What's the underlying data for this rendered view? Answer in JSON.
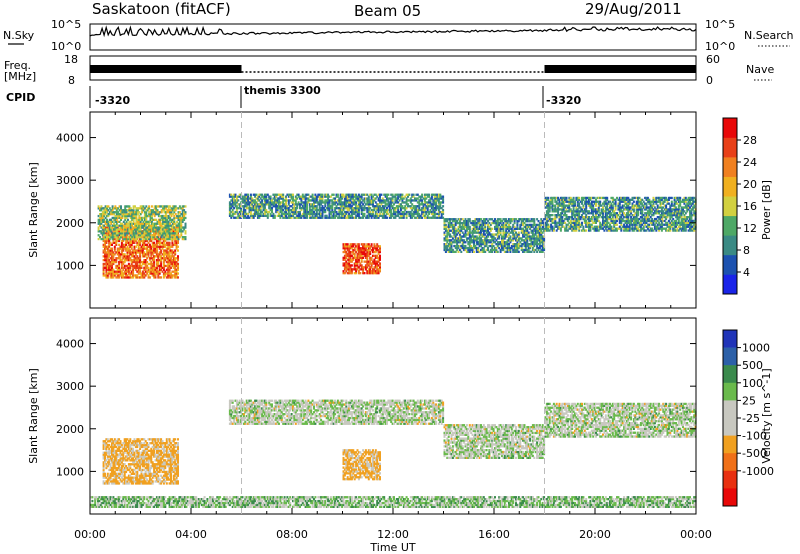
{
  "header": {
    "station": "Saskatoon (fitACF)",
    "beam": "Beam 05",
    "date": "29/Aug/2011"
  },
  "noise_panel": {
    "left_label": "N.Sky",
    "right_label": "N.Search",
    "left_ticks": [
      "10^5",
      "10^0"
    ],
    "right_ticks": [
      "10^5",
      "10^0"
    ]
  },
  "freq_panel": {
    "left_label_line1": "Freq.",
    "left_label_line2": "[MHz]",
    "right_label": "Nave",
    "left_ticks": [
      "18",
      "8"
    ],
    "right_ticks": [
      "60",
      "0"
    ]
  },
  "cpid": {
    "label": "CPID",
    "segments": [
      {
        "name": "-3320",
        "start_hour": 0
      },
      {
        "name": "themis 3300",
        "start_hour": 6
      },
      {
        "name": "-3320",
        "start_hour": 18
      }
    ]
  },
  "colors": {
    "power_scale": [
      "#1a24e8",
      "#1c52b0",
      "#3a8a84",
      "#4ea866",
      "#d2d040",
      "#f0b020",
      "#f08020",
      "#e84018",
      "#e80808"
    ],
    "velocity_scale": [
      "#2034b8",
      "#2c60a8",
      "#3a8a4c",
      "#6aba4c",
      "#c8c8c0",
      "#c8c8c0",
      "#f0a020",
      "#f07018",
      "#e83010",
      "#e80808"
    ]
  },
  "chart_data": [
    {
      "type": "heatmap",
      "title": "",
      "quantity": "Power",
      "ylabel": "Slant Range [km]",
      "xlabel": "",
      "xlim": [
        0,
        24
      ],
      "ylim": [
        0,
        4600
      ],
      "yticks": [
        1000,
        2000,
        3000,
        4000
      ],
      "ytick_labels": [
        "1000",
        "2000",
        "3000",
        "4000"
      ],
      "colorbar": {
        "label": "Power [dB]",
        "range": [
          0,
          32
        ],
        "ticks": [
          4,
          8,
          12,
          16,
          20,
          24,
          28
        ],
        "tick_labels": [
          "4",
          "8",
          "12",
          "16",
          "20",
          "24",
          "28"
        ]
      },
      "echo_regions": [
        {
          "t_start": 0.5,
          "t_end": 3.5,
          "r_low": 700,
          "r_high": 1900,
          "level_db": 24
        },
        {
          "t_start": 0.3,
          "t_end": 3.8,
          "r_low": 1600,
          "r_high": 2400,
          "level_db": 14
        },
        {
          "t_start": 5.5,
          "t_end": 14.0,
          "r_low": 2100,
          "r_high": 2700,
          "level_db": 10
        },
        {
          "t_start": 10.0,
          "t_end": 11.5,
          "r_low": 800,
          "r_high": 1500,
          "level_db": 26
        },
        {
          "t_start": 14.0,
          "t_end": 18.0,
          "r_low": 1300,
          "r_high": 2100,
          "level_db": 10
        },
        {
          "t_start": 18.0,
          "t_end": 24.0,
          "r_low": 1800,
          "r_high": 2600,
          "level_db": 10
        }
      ]
    },
    {
      "type": "heatmap",
      "title": "",
      "quantity": "Velocity",
      "ylabel": "Slant Range [km]",
      "xlabel": "Time UT",
      "xlim": [
        0,
        24
      ],
      "ylim": [
        0,
        4600
      ],
      "yticks": [
        1000,
        2000,
        3000,
        4000
      ],
      "ytick_labels": [
        "1000",
        "2000",
        "3000",
        "4000"
      ],
      "xticks": [
        0,
        4,
        8,
        12,
        16,
        20,
        24
      ],
      "xtick_labels": [
        "00:00",
        "04:00",
        "08:00",
        "12:00",
        "16:00",
        "20:00",
        "00:00"
      ],
      "colorbar": {
        "label": "Velocity [m s^-1]",
        "range": [
          -1200,
          1200
        ],
        "tick_labels": [
          "1000",
          "500",
          "100",
          "25",
          "-25",
          "-100",
          "-500",
          "-1000"
        ]
      },
      "echo_regions": [
        {
          "t_start": 0.5,
          "t_end": 3.5,
          "r_low": 700,
          "r_high": 1800,
          "velocity": -150
        },
        {
          "t_start": 5.5,
          "t_end": 14.0,
          "r_low": 2100,
          "r_high": 2700,
          "velocity": 0
        },
        {
          "t_start": 10.0,
          "t_end": 11.5,
          "r_low": 800,
          "r_high": 1500,
          "velocity": -150
        },
        {
          "t_start": 14.0,
          "t_end": 18.0,
          "r_low": 1300,
          "r_high": 2100,
          "velocity": 0
        },
        {
          "t_start": 18.0,
          "t_end": 24.0,
          "r_low": 1800,
          "r_high": 2600,
          "velocity": 0
        },
        {
          "t_start": 0.0,
          "t_end": 24.0,
          "r_low": 150,
          "r_high": 400,
          "velocity": 50
        }
      ]
    }
  ]
}
